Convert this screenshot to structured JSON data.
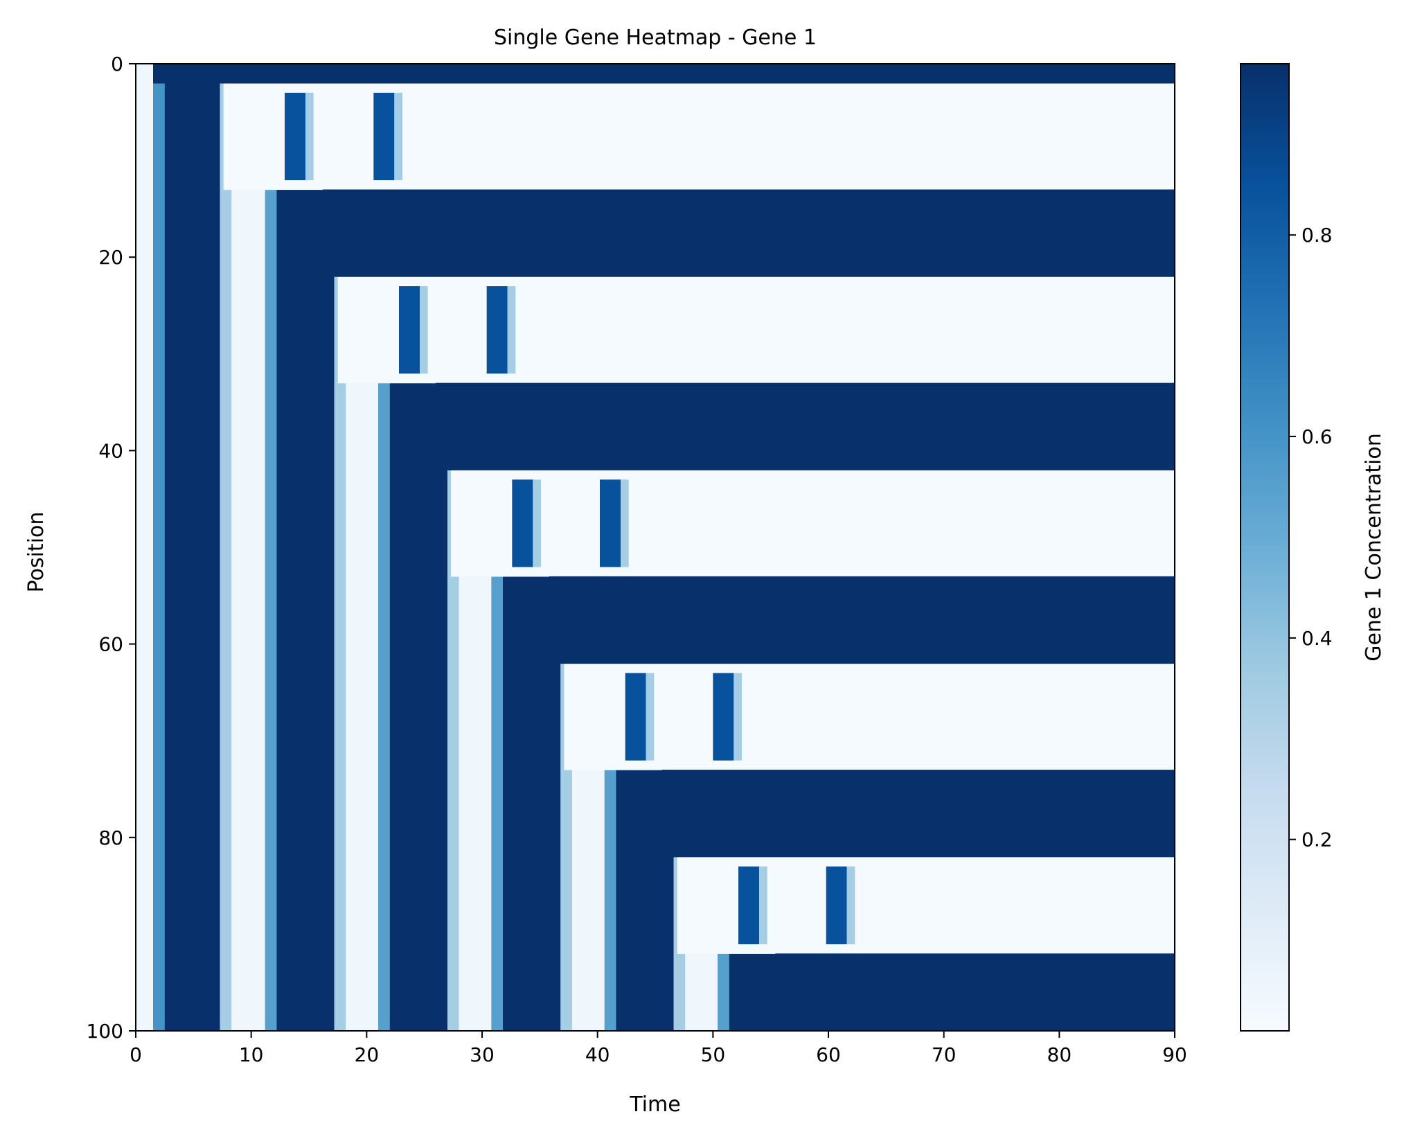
{
  "chart_data": {
    "type": "heatmap",
    "title": "Single Gene Heatmap - Gene 1",
    "xlabel": "Time",
    "ylabel": "Position",
    "xlim": [
      0,
      90
    ],
    "ylim": [
      100,
      0
    ],
    "xticks": [
      0,
      10,
      20,
      30,
      40,
      50,
      60,
      70,
      80,
      90
    ],
    "yticks": [
      0,
      20,
      40,
      60,
      80,
      100
    ],
    "colorbar": {
      "label": "Gene 1 Concentration",
      "ticks": [
        "0.2",
        "0.4",
        "0.6",
        "0.8"
      ],
      "range": [
        0.01,
        0.97
      ],
      "colormap": [
        "#f7fbff",
        "#deebf7",
        "#c6dbef",
        "#9ecae1",
        "#6baed6",
        "#4292c6",
        "#2171b5",
        "#08519c",
        "#08306b"
      ]
    },
    "time_bands": [
      {
        "x0": 0.0,
        "x1": 1.5,
        "value": 0.05
      },
      {
        "x0": 1.5,
        "x1": 2.5,
        "value": 0.6
      },
      {
        "x0": 2.5,
        "x1": 7.3,
        "value": 0.97
      },
      {
        "x0": 7.3,
        "x1": 8.3,
        "value": 0.35
      },
      {
        "x0": 8.3,
        "x1": 11.2,
        "value": 0.05
      },
      {
        "x0": 11.2,
        "x1": 12.2,
        "value": 0.55
      },
      {
        "x0": 12.2,
        "x1": 17.2,
        "value": 0.97
      },
      {
        "x0": 17.2,
        "x1": 18.2,
        "value": 0.35
      },
      {
        "x0": 18.2,
        "x1": 21.0,
        "value": 0.05
      },
      {
        "x0": 21.0,
        "x1": 22.0,
        "value": 0.55
      },
      {
        "x0": 22.0,
        "x1": 27.0,
        "value": 0.97
      },
      {
        "x0": 27.0,
        "x1": 28.0,
        "value": 0.35
      },
      {
        "x0": 28.0,
        "x1": 30.8,
        "value": 0.05
      },
      {
        "x0": 30.8,
        "x1": 31.8,
        "value": 0.55
      },
      {
        "x0": 31.8,
        "x1": 36.8,
        "value": 0.97
      },
      {
        "x0": 36.8,
        "x1": 37.8,
        "value": 0.35
      },
      {
        "x0": 37.8,
        "x1": 40.6,
        "value": 0.05
      },
      {
        "x0": 40.6,
        "x1": 41.6,
        "value": 0.55
      },
      {
        "x0": 41.6,
        "x1": 46.6,
        "value": 0.97
      },
      {
        "x0": 46.6,
        "x1": 47.6,
        "value": 0.35
      },
      {
        "x0": 47.6,
        "x1": 50.4,
        "value": 0.05
      },
      {
        "x0": 50.4,
        "x1": 51.4,
        "value": 0.55
      },
      {
        "x0": 51.4,
        "x1": 90.0,
        "value": 0.97
      }
    ],
    "stable_high_bands": [
      {
        "y0": 0,
        "y1": 2,
        "x_start": 1.5
      },
      {
        "y0": 13,
        "y1": 22,
        "x_start": 16.2
      },
      {
        "y0": 33,
        "y1": 42,
        "x_start": 26.0
      },
      {
        "y0": 53,
        "y1": 62,
        "x_start": 35.8
      },
      {
        "y0": 73,
        "y1": 82,
        "x_start": 45.6
      },
      {
        "y0": 92,
        "y1": 100,
        "x_start": 55.4
      }
    ],
    "low_regions": [
      {
        "y0": 2,
        "y1": 13,
        "x_start": 7.6
      },
      {
        "y0": 22,
        "y1": 33,
        "x_start": 17.5
      },
      {
        "y0": 42,
        "y1": 53,
        "x_start": 27.3
      },
      {
        "y0": 62,
        "y1": 73,
        "x_start": 37.1
      },
      {
        "y0": 82,
        "y1": 92,
        "x_start": 46.9
      }
    ],
    "wave_pulses": [
      {
        "y0": 2,
        "y1": 13,
        "x_centers": [
          13.8,
          21.5
        ],
        "value": 0.85
      },
      {
        "y0": 22,
        "y1": 33,
        "x_centers": [
          23.7,
          31.3
        ],
        "value": 0.85
      },
      {
        "y0": 42,
        "y1": 53,
        "x_centers": [
          33.5,
          41.1
        ],
        "value": 0.85
      },
      {
        "y0": 62,
        "y1": 73,
        "x_centers": [
          43.3,
          50.9
        ],
        "value": 0.85
      },
      {
        "y0": 82,
        "y1": 92,
        "x_centers": [
          53.1,
          60.7
        ],
        "value": 0.85
      }
    ]
  }
}
